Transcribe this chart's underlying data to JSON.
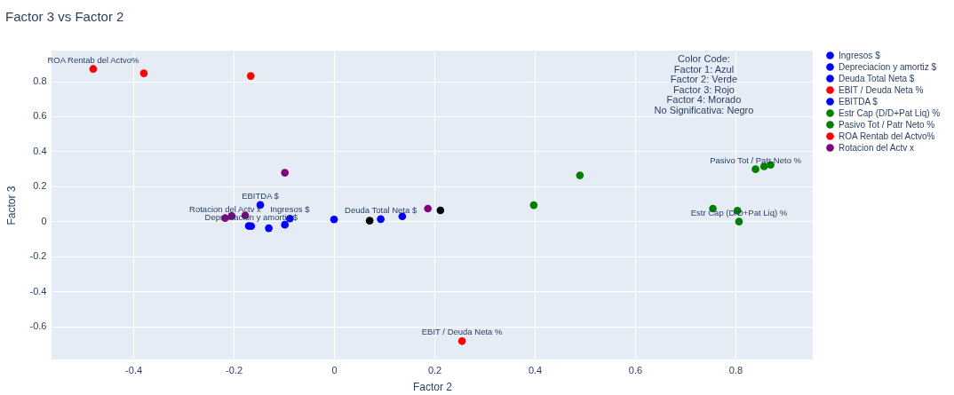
{
  "chart_data": {
    "type": "scatter",
    "title": "Factor 3 vs Factor 2",
    "xlabel": "Factor 2",
    "ylabel": "Factor 3",
    "xlim": [
      -0.563,
      0.954
    ],
    "ylim": [
      -0.79,
      0.975
    ],
    "xticks": [
      -0.4,
      -0.2,
      0,
      0.2,
      0.4,
      0.6,
      0.8
    ],
    "yticks": [
      -0.6,
      -0.4,
      -0.2,
      0,
      0.2,
      0.4,
      0.6,
      0.8
    ],
    "grid": true,
    "legend": "right",
    "marker": "circle",
    "series": [
      {
        "name": "Ingresos $",
        "color": "#0000ff",
        "x": [
          -0.088,
          -0.17,
          -0.13,
          -0.098,
          0,
          0.136
        ],
        "values": [
          0.015,
          -0.027,
          -0.04,
          -0.02,
          0.01,
          0.028
        ]
      },
      {
        "name": "Depreciacion y amortiz $",
        "color": "#0000ff",
        "x": [
          -0.165
        ],
        "values": [
          -0.028
        ]
      },
      {
        "name": "Deuda Total Neta $",
        "color": "#0000ff",
        "x": [
          0.093
        ],
        "values": [
          0.012
        ]
      },
      {
        "name": "EBIT / Deuda Neta %",
        "color": "#ff0000",
        "x": [
          0.255
        ],
        "values": [
          -0.685
        ]
      },
      {
        "name": "EBITDA $",
        "color": "#0000ff",
        "x": [
          -0.147
        ],
        "values": [
          0.093
        ]
      },
      {
        "name": "Estr Cap (D/D+Pat Liq) %",
        "color": "#008000",
        "x": [
          0.807,
          0.804,
          0.755,
          0.398
        ],
        "values": [
          -0.002,
          0.06,
          0.072,
          0.092
        ]
      },
      {
        "name": "Pasivo Tot / Patr Neto %",
        "color": "#008000",
        "x": [
          0.84,
          0.857,
          0.87,
          0.49
        ],
        "values": [
          0.297,
          0.313,
          0.322,
          0.262
        ]
      },
      {
        "name": "ROA Rentab del Actvo%",
        "color": "#ff0000",
        "x": [
          -0.48,
          -0.379,
          -0.166
        ],
        "values": [
          0.87,
          0.845,
          0.83
        ]
      },
      {
        "name": "Rotacion del Actv x",
        "color": "#800080",
        "x": [
          -0.204,
          -0.217,
          -0.177,
          -0.098,
          0.187
        ],
        "values": [
          0.03,
          0.018,
          0.033,
          0.277,
          0.072
        ]
      },
      {
        "color": "#000000",
        "x": [
          0.071,
          0.212
        ],
        "values": [
          0.003,
          0.062
        ]
      }
    ],
    "annotations": [
      {
        "text": "Ingresos $",
        "x": -0.088,
        "y": 0.015
      },
      {
        "text": "Depreciacion y amortiz $",
        "x": -0.165,
        "y": -0.028
      },
      {
        "text": "Deuda Total Neta $",
        "x": 0.093,
        "y": 0.012
      },
      {
        "text": "EBIT / Deuda Neta %",
        "x": 0.255,
        "y": -0.685
      },
      {
        "text": "EBITDA $",
        "x": -0.147,
        "y": 0.093
      },
      {
        "text": "Estr Cap (D/D+Pat Liq) %",
        "x": 0.807,
        "y": -0.002
      },
      {
        "text": "Pasivo Tot / Patr Neto %",
        "x": 0.84,
        "y": 0.297
      },
      {
        "text": "ROA Rentab del Actvo%",
        "x": -0.48,
        "y": 0.87
      },
      {
        "text": "Rotacion del Actv x",
        "x": -0.217,
        "y": 0.018
      },
      "Color Code:\nFactor 1: Azul\nFactor 2: Verde\nFactor 3: Rojo\nFactor 4: Morado\nNo Significativa: Negro"
    ]
  }
}
